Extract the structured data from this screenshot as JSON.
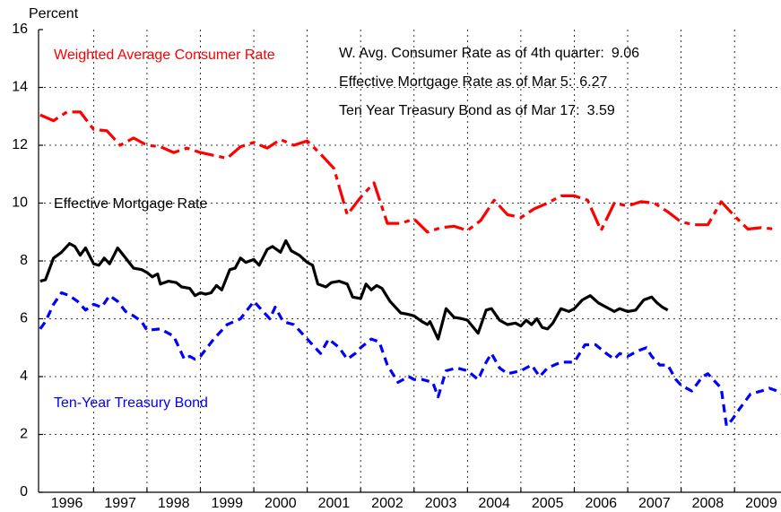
{
  "chart_data": {
    "type": "line",
    "ylabel": "Percent",
    "xlim": [
      1995.97,
      2009.87
    ],
    "ylim": [
      0,
      16
    ],
    "yticks": [
      0,
      2,
      4,
      6,
      8,
      10,
      12,
      14,
      16
    ],
    "xticks": [
      {
        "value": 1996.5,
        "label": "1996"
      },
      {
        "value": 1997.5,
        "label": "1997"
      },
      {
        "value": 1998.5,
        "label": "1998"
      },
      {
        "value": 1999.5,
        "label": "1999"
      },
      {
        "value": 2000.5,
        "label": "2000"
      },
      {
        "value": 2001.5,
        "label": "2001"
      },
      {
        "value": 2002.5,
        "label": "2002"
      },
      {
        "value": 2003.5,
        "label": "2003"
      },
      {
        "value": 2004.5,
        "label": "2004"
      },
      {
        "value": 2005.5,
        "label": "2005"
      },
      {
        "value": 2006.5,
        "label": "2006"
      },
      {
        "value": 2007.5,
        "label": "2007"
      },
      {
        "value": 2008.5,
        "label": "2008"
      },
      {
        "value": 2009.5,
        "label": "2009"
      }
    ],
    "xgrid": [
      1997,
      1998,
      1999,
      2000,
      2001,
      2002,
      2003,
      2004,
      2005,
      2006,
      2007,
      2008,
      2009
    ],
    "grid": true,
    "annotations": [
      {
        "label": "W. Avg. Consumer Rate as of 4th quarter:",
        "value": 9.06
      },
      {
        "label": "Effective Mortgage Rate as of Mar 5:",
        "value": 6.27
      },
      {
        "label": "Ten Year Treasury Bond as of Mar 17:",
        "value": 3.59
      }
    ],
    "series": [
      {
        "name": "Weighted Average Consumer Rate",
        "color": "#ff0000",
        "style": "dashdot",
        "x": [
          1996.0,
          1996.25,
          1996.5,
          1996.75,
          1997.0,
          1997.25,
          1997.5,
          1997.75,
          1998.0,
          1998.25,
          1998.5,
          1998.75,
          1999.0,
          1999.25,
          1999.5,
          1999.75,
          2000.0,
          2000.25,
          2000.5,
          2000.75,
          2001.0,
          2001.25,
          2001.5,
          2001.75,
          2002.0,
          2002.25,
          2002.5,
          2002.75,
          2003.0,
          2003.25,
          2003.5,
          2003.75,
          2004.0,
          2004.25,
          2004.5,
          2004.75,
          2005.0,
          2005.25,
          2005.5,
          2005.75,
          2006.0,
          2006.25,
          2006.5,
          2006.75,
          2007.0,
          2007.25,
          2007.5,
          2007.75,
          2008.0,
          2008.25,
          2008.5,
          2008.75,
          2009.0,
          2009.25,
          2009.5,
          2009.75
        ],
        "values": [
          13.05,
          12.85,
          13.15,
          13.15,
          12.55,
          12.5,
          12.0,
          12.25,
          12.0,
          11.95,
          11.75,
          11.9,
          11.75,
          11.65,
          11.55,
          11.95,
          12.1,
          11.9,
          12.2,
          12.0,
          12.15,
          11.7,
          11.2,
          9.6,
          10.2,
          10.7,
          9.3,
          9.3,
          9.45,
          9.0,
          9.15,
          9.2,
          9.05,
          9.4,
          10.1,
          9.6,
          9.5,
          9.8,
          10.0,
          10.25,
          10.25,
          10.1,
          9.05,
          10.0,
          9.9,
          10.05,
          10.0,
          9.7,
          9.35,
          9.25,
          9.25,
          10.05,
          9.55,
          9.1,
          9.15,
          9.1
        ]
      },
      {
        "name": "Effective Mortgage Rate",
        "color": "#000000",
        "style": "solid",
        "x": [
          1996.0,
          1996.1,
          1996.25,
          1996.4,
          1996.55,
          1996.65,
          1996.75,
          1996.85,
          1997.0,
          1997.1,
          1997.2,
          1997.3,
          1997.45,
          1997.6,
          1997.75,
          1997.9,
          1998.0,
          1998.1,
          1998.2,
          1998.25,
          1998.4,
          1998.55,
          1998.65,
          1998.8,
          1998.9,
          1999.0,
          1999.1,
          1999.2,
          1999.3,
          1999.4,
          1999.55,
          1999.65,
          1999.75,
          1999.85,
          2000.0,
          2000.1,
          2000.25,
          2000.35,
          2000.5,
          2000.6,
          2000.7,
          2000.85,
          2001.0,
          2001.1,
          2001.2,
          2001.35,
          2001.45,
          2001.6,
          2001.75,
          2001.85,
          2002.0,
          2002.1,
          2002.2,
          2002.3,
          2002.4,
          2002.55,
          2002.75,
          2002.9,
          2003.0,
          2003.15,
          2003.25,
          2003.3,
          2003.45,
          2003.6,
          2003.75,
          2003.9,
          2004.0,
          2004.2,
          2004.35,
          2004.45,
          2004.6,
          2004.75,
          2004.9,
          2005.0,
          2005.1,
          2005.2,
          2005.3,
          2005.4,
          2005.5,
          2005.6,
          2005.75,
          2005.9,
          2006.0,
          2006.15,
          2006.3,
          2006.45,
          2006.6,
          2006.75,
          2006.85,
          2007.0,
          2007.15,
          2007.3,
          2007.45,
          2007.55,
          2007.65,
          2007.75
        ],
        "values": [
          7.3,
          7.35,
          8.1,
          8.3,
          8.6,
          8.5,
          8.2,
          8.45,
          7.9,
          7.85,
          8.1,
          7.9,
          8.45,
          8.1,
          7.75,
          7.7,
          7.6,
          7.45,
          7.55,
          7.2,
          7.3,
          7.25,
          7.1,
          7.05,
          6.8,
          6.9,
          6.85,
          6.9,
          7.15,
          7.0,
          7.7,
          7.75,
          8.1,
          7.95,
          8.05,
          7.85,
          8.4,
          8.5,
          8.3,
          8.7,
          8.35,
          8.2,
          7.95,
          7.85,
          7.2,
          7.1,
          7.25,
          7.3,
          7.2,
          6.75,
          6.7,
          7.2,
          7.0,
          7.15,
          7.05,
          6.6,
          6.2,
          6.15,
          6.1,
          5.9,
          5.8,
          5.9,
          5.3,
          6.35,
          6.05,
          6.0,
          5.95,
          5.5,
          6.3,
          6.35,
          5.95,
          5.8,
          5.85,
          5.75,
          5.95,
          5.8,
          6.0,
          5.7,
          5.65,
          5.85,
          6.35,
          6.25,
          6.35,
          6.65,
          6.8,
          6.55,
          6.4,
          6.25,
          6.35,
          6.25,
          6.3,
          6.65,
          6.75,
          6.55,
          6.4,
          6.3
        ]
      },
      {
        "name": "Ten-Year Treasury Bond",
        "color": "#0000ff",
        "style": "dashed",
        "x": [
          1996.0,
          1996.1,
          1996.25,
          1996.4,
          1996.55,
          1996.7,
          1996.85,
          1997.0,
          1997.15,
          1997.3,
          1997.45,
          1997.6,
          1997.75,
          1997.9,
          1998.0,
          1998.25,
          1998.5,
          1998.7,
          1998.8,
          1998.9,
          1999.0,
          1999.25,
          1999.5,
          1999.75,
          2000.0,
          2000.15,
          2000.3,
          2000.4,
          2000.55,
          2000.75,
          2000.9,
          2001.0,
          2001.25,
          2001.4,
          2001.6,
          2001.75,
          2001.9,
          2002.0,
          2002.2,
          2002.35,
          2002.5,
          2002.7,
          2002.9,
          2003.0,
          2003.15,
          2003.35,
          2003.45,
          2003.6,
          2003.8,
          2004.0,
          2004.2,
          2004.35,
          2004.45,
          2004.6,
          2004.75,
          2005.0,
          2005.2,
          2005.35,
          2005.5,
          2005.75,
          2006.0,
          2006.2,
          2006.4,
          2006.6,
          2006.75,
          2006.85,
          2007.0,
          2007.2,
          2007.35,
          2007.45,
          2007.6,
          2007.75,
          2007.9,
          2008.0,
          2008.2,
          2008.4,
          2008.5,
          2008.6,
          2008.75,
          2008.85,
          2008.95,
          2009.1,
          2009.3,
          2009.5,
          2009.65,
          2009.8,
          2009.87
        ],
        "values": [
          5.65,
          5.9,
          6.5,
          6.9,
          6.8,
          6.6,
          6.3,
          6.5,
          6.4,
          6.8,
          6.6,
          6.25,
          6.1,
          5.9,
          5.6,
          5.65,
          5.4,
          4.6,
          4.7,
          4.6,
          4.7,
          5.3,
          5.8,
          6.0,
          6.6,
          6.3,
          6.0,
          6.4,
          5.9,
          5.8,
          5.5,
          5.3,
          4.8,
          5.3,
          5.0,
          4.6,
          4.8,
          5.0,
          5.3,
          5.2,
          4.4,
          3.8,
          4.0,
          3.9,
          3.9,
          3.8,
          3.3,
          4.2,
          4.3,
          4.2,
          3.9,
          4.5,
          4.8,
          4.3,
          4.1,
          4.2,
          4.4,
          4.0,
          4.3,
          4.5,
          4.5,
          5.1,
          5.1,
          4.8,
          4.6,
          4.8,
          4.7,
          4.9,
          5.0,
          4.7,
          4.4,
          4.4,
          3.9,
          3.7,
          3.5,
          4.0,
          4.1,
          3.9,
          3.6,
          2.3,
          2.5,
          2.9,
          3.4,
          3.5,
          3.6,
          3.5,
          3.4
        ]
      }
    ]
  }
}
